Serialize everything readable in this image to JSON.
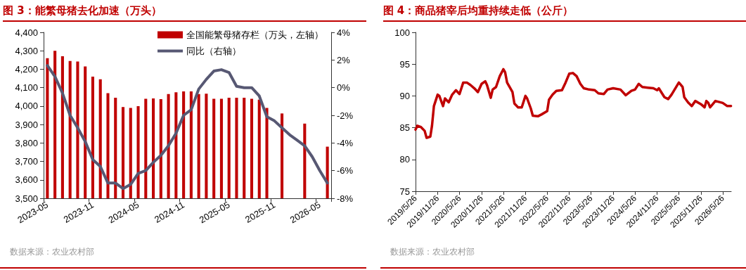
{
  "chart_data": [
    {
      "type": "bar",
      "title": "图 3：能繁母猪去化加速（万头）",
      "annotations": [
        "数据来源：农业农村部"
      ],
      "categories": [
        "2023-05",
        null,
        null,
        null,
        null,
        null,
        "2023-11",
        null,
        null,
        null,
        null,
        null,
        "2024-05",
        null,
        null,
        null,
        null,
        null,
        "2024-11",
        null,
        null,
        null,
        null,
        null,
        "2025-05",
        null,
        null,
        null,
        null,
        null,
        "2025-11",
        null,
        null,
        null,
        null,
        null,
        "2026-05",
        null
      ],
      "series": [
        {
          "name": "全国能繁母猪存栏（万头，左轴）",
          "color": "#c00000",
          "values": [
            4260,
            4300,
            4270,
            4245,
            4242,
            4215,
            4160,
            4145,
            4070,
            4045,
            3995,
            3990,
            4000,
            4040,
            4042,
            4038,
            4065,
            4075,
            4080,
            4080,
            4065,
            4067,
            4040,
            4040,
            4045,
            4045,
            4045,
            4040,
            4035,
            3990,
            null,
            3960,
            null,
            null,
            3905,
            null,
            null,
            3780
          ]
        },
        {
          "name": "同比（右轴）",
          "type": "line",
          "axis": "y2",
          "color": "#575873",
          "values": [
            1.6,
            0.8,
            -0.4,
            -2.0,
            -2.9,
            -3.9,
            -5.2,
            -5.7,
            -6.9,
            -6.9,
            -7.3,
            -7.0,
            -6.2,
            -6.0,
            -5.4,
            -4.9,
            -4.2,
            -3.3,
            -2.0,
            -1.6,
            -0.1,
            0.6,
            1.2,
            1.3,
            1.1,
            0.1,
            0.0,
            0.0,
            -0.6,
            -2.1,
            -2.4,
            -2.9,
            -3.4,
            -3.8,
            -4.2,
            -5.0,
            -6.0,
            -6.9
          ]
        }
      ],
      "ylim": [
        3500,
        4400
      ],
      "yticks": [
        {
          "value": 3500,
          "label": "3,500"
        },
        {
          "value": 3600,
          "label": "3,600"
        },
        {
          "value": 3700,
          "label": "3,700"
        },
        {
          "value": 3800,
          "label": "3,800"
        },
        {
          "value": 3900,
          "label": "3,900"
        },
        {
          "value": 4000,
          "label": "4,000"
        },
        {
          "value": 4100,
          "label": "4,100"
        },
        {
          "value": 4200,
          "label": "4,200"
        },
        {
          "value": 4300,
          "label": "4,300"
        },
        {
          "value": 4400,
          "label": "4,400"
        }
      ],
      "y2lim": [
        -8,
        4
      ],
      "y2ticks": [
        {
          "value": -8,
          "label": "-8%"
        },
        {
          "value": -6,
          "label": "-6%"
        },
        {
          "value": -4,
          "label": "-4%"
        },
        {
          "value": -2,
          "label": "-2%"
        },
        {
          "value": 0,
          "label": "0%"
        },
        {
          "value": 2,
          "label": "2%"
        },
        {
          "value": 4,
          "label": "4%"
        }
      ],
      "legend": "top right",
      "grid": false,
      "marker": "none"
    },
    {
      "type": "line",
      "title": "图 4：商品猪宰后均重持续走低（公斤）",
      "annotations": [
        "数据来源：农业农村部"
      ],
      "x": [
        "2019-05-26",
        "2019-06-10",
        "2019-07-10",
        "2019-08-10",
        "2019-08-26",
        "2019-09-26",
        "2019-10-10",
        "2019-10-26",
        "2019-11-26",
        "2019-12-10",
        "2020-01-10",
        "2020-01-26",
        "2020-02-26",
        "2020-03-26",
        "2020-04-26",
        "2020-05-26",
        "2020-06-26",
        "2020-07-26",
        "2020-08-26",
        "2020-09-26",
        "2020-10-26",
        "2020-11-26",
        "2020-12-26",
        "2021-01-10",
        "2021-02-10",
        "2021-02-26",
        "2021-03-26",
        "2021-04-26",
        "2021-05-26",
        "2021-06-10",
        "2021-06-26",
        "2021-08-10",
        "2021-08-26",
        "2021-09-26",
        "2021-10-26",
        "2021-11-26",
        "2021-12-10",
        "2022-01-10",
        "2022-01-26",
        "2022-03-10",
        "2022-04-10",
        "2022-05-26",
        "2022-06-10",
        "2022-07-10",
        "2022-08-10",
        "2022-09-26",
        "2022-10-26",
        "2022-11-26",
        "2022-12-26",
        "2023-01-26",
        "2023-02-26",
        "2023-03-26",
        "2023-05-10",
        "2023-06-26",
        "2023-07-26",
        "2023-09-10",
        "2023-10-10",
        "2023-11-26",
        "2024-01-26",
        "2024-03-10",
        "2024-04-26",
        "2024-05-26",
        "2024-06-26",
        "2024-07-26",
        "2024-09-10",
        "2024-10-26",
        "2024-11-26",
        "2024-12-10",
        "2025-01-26",
        "2025-02-26",
        "2025-03-26",
        "2025-05-26",
        "2025-06-26",
        "2025-07-10",
        "2025-08-10",
        "2025-09-10",
        "2025-10-10",
        "2025-11-26",
        "2025-12-26",
        "2026-01-10",
        "2026-01-26",
        "2026-02-10",
        "2026-03-26",
        "2026-05-26",
        "2026-07-03",
        "2026-08-03"
      ],
      "series": [
        {
          "color": "#c00000",
          "values": [
            84.7,
            85.3,
            85.1,
            84.5,
            83.4,
            83.6,
            85.3,
            88.4,
            90.2,
            90.0,
            88.4,
            89.6,
            89.0,
            90.2,
            90.9,
            90.3,
            92.1,
            92.1,
            91.7,
            91.2,
            90.6,
            91.9,
            92.3,
            91.7,
            89.7,
            91.0,
            91.4,
            93.1,
            94.2,
            93.7,
            92.1,
            90.6,
            88.8,
            88.2,
            88.2,
            90.0,
            89.6,
            88.0,
            86.9,
            86.8,
            87.1,
            87.6,
            89.4,
            90.2,
            90.8,
            90.9,
            92.1,
            93.5,
            93.6,
            93.1,
            91.9,
            91.2,
            91.0,
            90.9,
            90.4,
            90.3,
            91.0,
            91.2,
            91.0,
            90.1,
            90.8,
            91.0,
            91.9,
            91.4,
            91.3,
            91.2,
            90.9,
            91.2,
            89.8,
            89.5,
            90.2,
            92.1,
            91.4,
            89.8,
            89.0,
            88.4,
            89.2,
            88.7,
            88.2,
            89.2,
            88.9,
            88.2,
            89.2,
            88.9,
            88.4,
            88.4
          ]
        }
      ],
      "xlim": [
        "2019-05-26",
        "2026-08-05"
      ],
      "xticks": [
        {
          "value": "2019-05-26",
          "label": "2019/5/26"
        },
        {
          "value": "2019-11-26",
          "label": "2019/11/26"
        },
        {
          "value": "2020-05-26",
          "label": "2020/5/26"
        },
        {
          "value": "2020-11-26",
          "label": "2020/11/26"
        },
        {
          "value": "2021-05-26",
          "label": "2021/5/26"
        },
        {
          "value": "2021-11-26",
          "label": "2021/11/26"
        },
        {
          "value": "2022-05-26",
          "label": "2022/5/26"
        },
        {
          "value": "2022-11-26",
          "label": "2022/11/26"
        },
        {
          "value": "2023-05-26",
          "label": "2023/5/26"
        },
        {
          "value": "2023-11-26",
          "label": "2023/11/26"
        },
        {
          "value": "2024-05-26",
          "label": "2024/5/26"
        },
        {
          "value": "2024-11-26",
          "label": "2024/11/26"
        },
        {
          "value": "2025-05-26",
          "label": "2025/5/26"
        },
        {
          "value": "2025-11-26",
          "label": "2025/11/26"
        },
        {
          "value": "2026-05-26",
          "label": "2026/5/26"
        }
      ],
      "ylim": [
        75,
        100
      ],
      "yticks": [
        75,
        80,
        85,
        90,
        95,
        100
      ],
      "grid": false,
      "marker": "none",
      "legend": false
    }
  ]
}
